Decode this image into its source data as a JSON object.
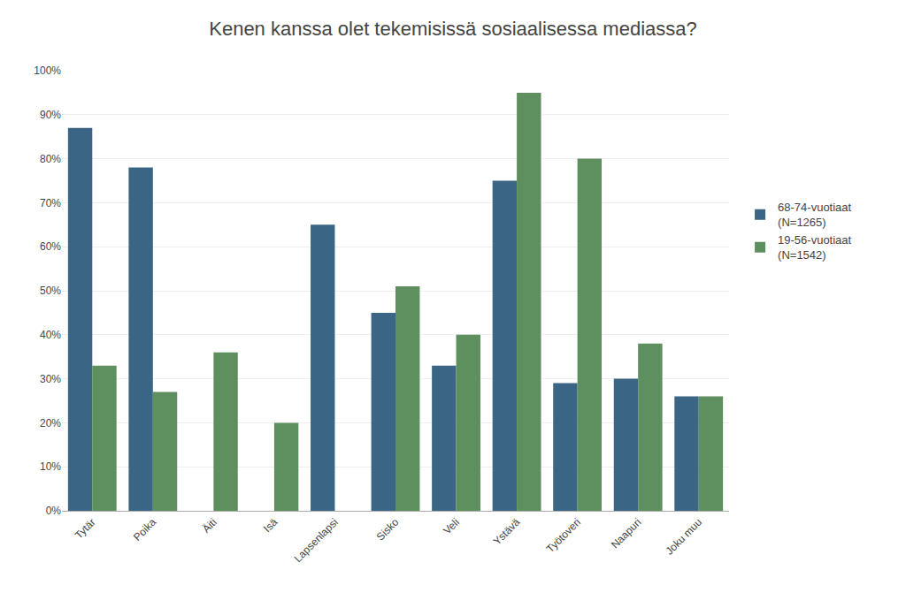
{
  "chart_data": {
    "type": "bar",
    "title": "Kenen kanssa olet tekemisissä sosiaalisessa mediassa?",
    "categories": [
      "Tytär",
      "Poika",
      "Äiti",
      "Isä",
      "Lapsenlapsi",
      "Sisko",
      "Veli",
      "Ystävä",
      "Työtoveri",
      "Naapuri",
      "Joku muu"
    ],
    "series": [
      {
        "name": "68-74-vuotiaat\n(N=1265)",
        "color": "#3A6585",
        "values": [
          87,
          78,
          0,
          0,
          65,
          45,
          33,
          75,
          29,
          30,
          26
        ]
      },
      {
        "name": "19-56-vuotiaat\n(N=1542)",
        "color": "#5E8F5E",
        "values": [
          33,
          27,
          36,
          20,
          0,
          51,
          40,
          95,
          80,
          38,
          26
        ]
      }
    ],
    "ylim": [
      0,
      100
    ],
    "yticks": [
      {
        "value": 0,
        "label": "0%"
      },
      {
        "value": 10,
        "label": "10%"
      },
      {
        "value": 20,
        "label": "20%"
      },
      {
        "value": 30,
        "label": "30%"
      },
      {
        "value": 40,
        "label": "40%"
      },
      {
        "value": 50,
        "label": "50%"
      },
      {
        "value": 60,
        "label": "60%"
      },
      {
        "value": 70,
        "label": "70%"
      },
      {
        "value": 80,
        "label": "80%"
      },
      {
        "value": 90,
        "label": "90%"
      },
      {
        "value": 100,
        "label": "100%"
      }
    ],
    "grid": true,
    "legend": "right"
  }
}
